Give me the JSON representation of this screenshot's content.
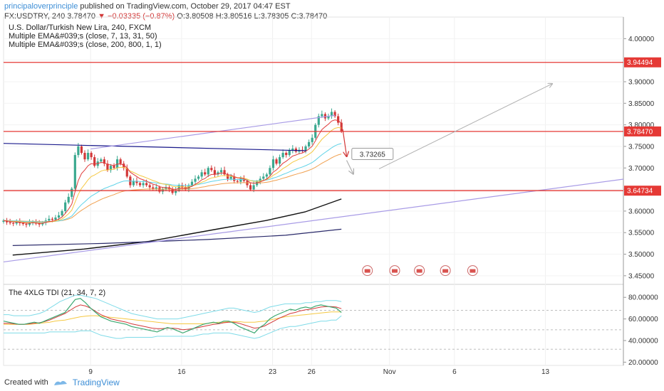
{
  "header": {
    "author": "principaloverprinciple",
    "published": "published on TradingView.com, October 29, 2017 04:47 EST",
    "symbol_line_prefix": "FX:USDTRY, 240",
    "last": "3.78470",
    "change": "−0.03335 (−0.87%)",
    "ohlc": "O:3.80508 H:3.80516 L:3.78305 C:3.78470"
  },
  "legend": {
    "title": "U.S. Dollar/Turkish New Lira, 240, FXCM",
    "ema1": "Multiple EMA&#039;s (close, 7, 13, 31, 50)",
    "ema2": "Multiple EMA&#039;s (close, 200, 800, 1, 1)",
    "tdi": "The 4XLG TDI (21, 34, 7, 2)"
  },
  "footer": {
    "created_with": "Created with",
    "brand": "TradingView"
  },
  "colors": {
    "up": "#3aa88f",
    "down": "#d23838",
    "ema7": "#e03c3c",
    "ema13": "#f5c842",
    "ema31": "#5fd3e8",
    "ema50": "#f0a050",
    "ema200": "#111111",
    "ema800": "#2a2a6a",
    "red_level": "#e53935",
    "trend_blue": "#1a1a8c",
    "trend_purple": "#a89be6",
    "projection": "#b0b0b0"
  },
  "chart_data": [
    {
      "type": "candlestick",
      "title": "U.S. Dollar/Turkish New Lira, 240, FXCM",
      "ylim": [
        3.43,
        4.05
      ],
      "y_ticks": [
        "4.00000",
        "3.95000",
        "3.90000",
        "3.85000",
        "3.80000",
        "3.75000",
        "3.70000",
        "3.65000",
        "3.60000",
        "3.55000",
        "3.50000",
        "3.45000"
      ],
      "x_ticks": [
        {
          "label": "9",
          "day": 9
        },
        {
          "label": "16",
          "day": 16
        },
        {
          "label": "23",
          "day": 23
        },
        {
          "label": "26",
          "day": 26
        },
        {
          "label": "Nov",
          "day": 32
        },
        {
          "label": "6",
          "day": 37
        },
        {
          "label": "13",
          "day": 44
        }
      ],
      "xlim_days": [
        2.3,
        50
      ],
      "price_labels": [
        {
          "label": "3.94494",
          "value": 3.94494,
          "color": "#e53935",
          "line": true
        },
        {
          "label": "3.78470",
          "value": 3.7847,
          "color": "#e53935",
          "line": true
        },
        {
          "label": "3.64734",
          "value": 3.64734,
          "color": "#e53935",
          "line": true
        }
      ],
      "annotation": {
        "label": "3.73265",
        "value": 3.73265
      },
      "candles_close": [
        3.578,
        3.574,
        3.572,
        3.571,
        3.575,
        3.572,
        3.57,
        3.568,
        3.573,
        3.575,
        3.571,
        3.569,
        3.573,
        3.578,
        3.582,
        3.58,
        3.585,
        3.59,
        3.6,
        3.62,
        3.633,
        3.652,
        3.73,
        3.75,
        3.735,
        3.72,
        3.735,
        3.725,
        3.705,
        3.715,
        3.72,
        3.71,
        3.695,
        3.705,
        3.7,
        3.72,
        3.71,
        3.7,
        3.68,
        3.66,
        3.67,
        3.665,
        3.66,
        3.665,
        3.66,
        3.655,
        3.652,
        3.655,
        3.645,
        3.65,
        3.655,
        3.65,
        3.642,
        3.648,
        3.66,
        3.655,
        3.65,
        3.66,
        3.668,
        3.675,
        3.68,
        3.69,
        3.685,
        3.7,
        3.695,
        3.685,
        3.69,
        3.695,
        3.685,
        3.675,
        3.68,
        3.67,
        3.668,
        3.675,
        3.67,
        3.66,
        3.65,
        3.66,
        3.668,
        3.675,
        3.68,
        3.685,
        3.7,
        3.72,
        3.71,
        3.725,
        3.735,
        3.73,
        3.74,
        3.745,
        3.738,
        3.742,
        3.74,
        3.75,
        3.76,
        3.77,
        3.8,
        3.82,
        3.825,
        3.815,
        3.82,
        3.83,
        3.82,
        3.805,
        3.785
      ],
      "ema200": [
        [
          3.0,
          3.498
        ],
        [
          8.5,
          3.512
        ],
        [
          13.5,
          3.53
        ],
        [
          18.5,
          3.557
        ],
        [
          22.5,
          3.578
        ],
        [
          25.5,
          3.598
        ],
        [
          28.3,
          3.628
        ]
      ],
      "ema800": [
        [
          3.0,
          3.52
        ],
        [
          10.0,
          3.525
        ],
        [
          18.0,
          3.534
        ],
        [
          24.0,
          3.544
        ],
        [
          28.3,
          3.558
        ]
      ],
      "trendlines": [
        {
          "name": "blue-resistance",
          "from": [
            2.3,
            3.757
          ],
          "to": [
            25.6,
            3.74
          ]
        },
        {
          "name": "purple-upper-channel",
          "from": [
            9.0,
            3.744
          ],
          "to": [
            27.8,
            3.822
          ]
        },
        {
          "name": "purple-lower-channel",
          "from": [
            2.3,
            3.482
          ],
          "to": [
            50.0,
            3.674
          ]
        }
      ]
    },
    {
      "type": "line",
      "title": "The 4XLG TDI (21, 34, 7, 2)",
      "ylim": [
        17,
        92
      ],
      "y_ticks": [
        "80.00000",
        "60.00000",
        "40.00000",
        "20.00000"
      ],
      "levels": [
        68,
        50,
        32
      ],
      "rsi": [
        58,
        57,
        56,
        55,
        55,
        56,
        57,
        56,
        58,
        60,
        62,
        64,
        66,
        72,
        78,
        79,
        75,
        70,
        66,
        62,
        60,
        58,
        57,
        56,
        55,
        53,
        52,
        51,
        50,
        49,
        48,
        50,
        52,
        51,
        49,
        47,
        49,
        51,
        53,
        55,
        56,
        57,
        56,
        58,
        58,
        56,
        53,
        51,
        49,
        47,
        52,
        55,
        60,
        63,
        65,
        67,
        69,
        68,
        70,
        71,
        70,
        72,
        73,
        72,
        71,
        70,
        66
      ],
      "signal": [
        56,
        56,
        55.5,
        55,
        55,
        55.5,
        56,
        56.5,
        57.5,
        59,
        61,
        63,
        65,
        68,
        71,
        73,
        72,
        70,
        67,
        64,
        62,
        60,
        59,
        58,
        57,
        55.5,
        54.5,
        53.5,
        52.5,
        51.5,
        51,
        51,
        51.5,
        51.5,
        51,
        50,
        50.5,
        51,
        52,
        53,
        54,
        55,
        55.5,
        56.5,
        57,
        57,
        56,
        54.5,
        53,
        51.5,
        52,
        53.5,
        56,
        58.5,
        61,
        63,
        65,
        66,
        67.5,
        68.5,
        69,
        70,
        71,
        71.5,
        71.5,
        71,
        69.5
      ],
      "baseline": [
        55,
        55,
        55,
        55,
        55,
        55,
        55.5,
        56,
        56.5,
        57,
        58,
        58.5,
        59,
        60,
        61,
        62,
        62.5,
        63,
        63,
        62.5,
        62,
        61.5,
        61,
        60.5,
        60,
        59.5,
        59,
        58.5,
        58,
        57.5,
        57,
        56.5,
        56,
        55.5,
        55.5,
        55.5,
        55.5,
        55.5,
        55.5,
        55.5,
        56,
        56.5,
        57,
        57,
        57.5,
        57.5,
        57.5,
        57,
        57,
        57,
        57.5,
        58,
        59,
        60,
        61,
        62,
        62.5,
        63,
        63.5,
        64,
        64.5,
        65,
        65.5,
        66,
        66.5,
        66.5,
        66.5
      ],
      "band_upper": [
        64,
        64,
        63,
        63,
        63,
        63,
        64,
        65,
        67,
        70,
        73,
        76,
        78,
        80,
        82,
        82,
        81,
        80,
        79,
        77,
        75,
        73,
        71,
        69,
        67,
        65,
        64,
        63,
        62,
        61,
        60,
        60,
        60,
        60,
        60,
        61,
        62,
        63,
        64,
        65,
        66,
        67,
        68,
        69,
        70,
        70,
        69,
        68,
        67,
        66,
        67,
        69,
        71,
        72,
        73,
        74,
        74,
        74,
        74,
        75,
        75,
        76,
        76,
        77,
        77,
        77,
        76
      ],
      "band_lower": [
        47,
        47,
        47,
        47,
        47,
        47,
        47,
        47,
        47,
        48,
        48,
        48,
        48,
        48,
        48,
        49,
        49,
        49,
        47,
        45,
        44,
        43,
        42,
        42,
        43,
        43,
        43,
        43,
        43,
        43,
        44,
        44,
        44,
        44,
        44,
        44,
        44,
        44,
        45,
        46,
        46,
        47,
        47,
        47,
        47,
        46,
        45,
        44,
        43,
        42,
        43,
        45,
        47,
        49,
        51,
        52,
        53,
        53,
        54,
        55,
        56,
        57,
        58,
        58,
        59,
        59,
        63
      ]
    }
  ]
}
